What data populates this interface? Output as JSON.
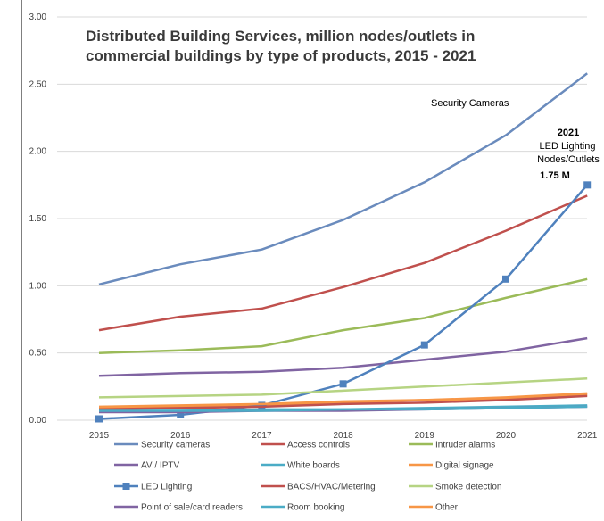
{
  "chart_data": {
    "type": "line",
    "title_lines": [
      "Distributed Building Services, million nodes/outlets in",
      "commercial buildings by type of products, 2015 - 2021"
    ],
    "x": [
      "2015",
      "2016",
      "2017",
      "2018",
      "2019",
      "2020",
      "2021"
    ],
    "y_ticks": [
      "0.00",
      "0.50",
      "1.00",
      "1.50",
      "2.00",
      "2.50",
      "3.00"
    ],
    "ylim": [
      0,
      3
    ],
    "grid": true,
    "legend_position": "bottom",
    "series": [
      {
        "name": "Security cameras",
        "color": "#6a8bbd",
        "marker": "none",
        "values": [
          1.01,
          1.16,
          1.27,
          1.49,
          1.77,
          2.12,
          2.58
        ]
      },
      {
        "name": "Access controls",
        "color": "#c0504d",
        "marker": "none",
        "values": [
          0.67,
          0.77,
          0.83,
          0.99,
          1.17,
          1.41,
          1.67
        ]
      },
      {
        "name": "Intruder alarms",
        "color": "#9bbb59",
        "marker": "none",
        "values": [
          0.5,
          0.52,
          0.55,
          0.67,
          0.76,
          0.91,
          1.05
        ]
      },
      {
        "name": "AV / IPTV",
        "color": "#8064a2",
        "marker": "none",
        "values": [
          0.33,
          0.35,
          0.36,
          0.39,
          0.45,
          0.51,
          0.61
        ]
      },
      {
        "name": "White boards",
        "color": "#4bacc6",
        "marker": "none",
        "values": [
          0.07,
          0.07,
          0.08,
          0.08,
          0.09,
          0.1,
          0.11
        ]
      },
      {
        "name": "Digital signage",
        "color": "#f79646",
        "marker": "none",
        "values": [
          0.09,
          0.1,
          0.11,
          0.13,
          0.15,
          0.16,
          0.19
        ]
      },
      {
        "name": "LED Lighting",
        "color": "#4f81bd",
        "marker": "square",
        "values": [
          0.01,
          0.04,
          0.11,
          0.27,
          0.56,
          1.05,
          1.75
        ]
      },
      {
        "name": "BACS/HVAC/Metering",
        "color": "#c0504d",
        "marker": "none",
        "values": [
          0.08,
          0.09,
          0.1,
          0.12,
          0.13,
          0.15,
          0.18
        ]
      },
      {
        "name": "Smoke detection",
        "color": "#b6d483",
        "marker": "none",
        "values": [
          0.17,
          0.18,
          0.19,
          0.22,
          0.25,
          0.28,
          0.31
        ]
      },
      {
        "name": "Point of sale/card readers",
        "color": "#8064a2",
        "marker": "none",
        "values": [
          0.06,
          0.06,
          0.07,
          0.07,
          0.08,
          0.09,
          0.1
        ]
      },
      {
        "name": "Room booking",
        "color": "#4bacc6",
        "marker": "none",
        "values": [
          0.07,
          0.07,
          0.07,
          0.08,
          0.08,
          0.09,
          0.1
        ]
      },
      {
        "name": "Other",
        "color": "#f79646",
        "marker": "none",
        "values": [
          0.1,
          0.11,
          0.12,
          0.14,
          0.15,
          0.17,
          0.2
        ]
      }
    ],
    "annotations": {
      "security_label": "Security Cameras",
      "led_year": "2021",
      "led_line1": "LED Lighting",
      "led_line2": "Nodes/Outlets",
      "led_value": "1.75 M"
    }
  }
}
